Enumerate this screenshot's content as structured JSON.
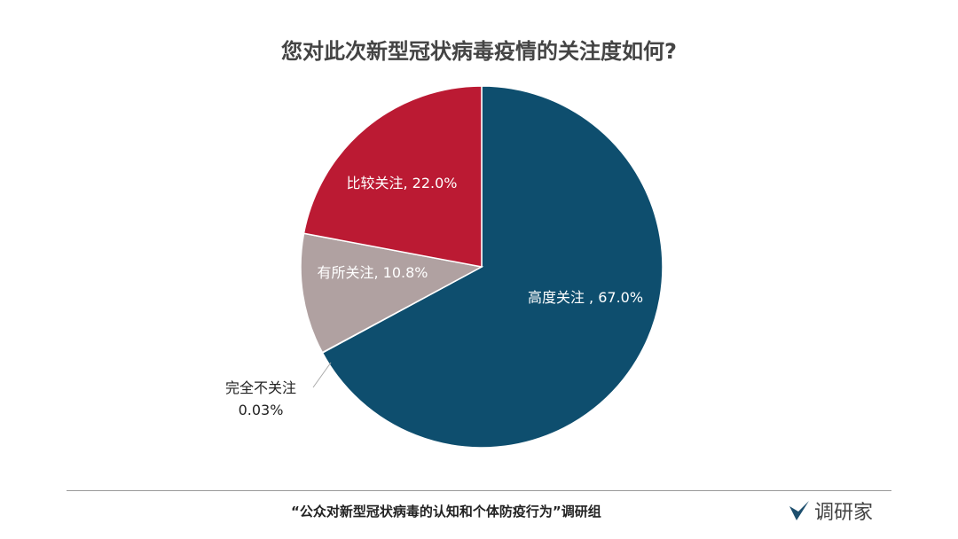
{
  "chart_data": {
    "type": "pie",
    "title": "您对此次新型冠状病毒疫情的关注度如何?",
    "slices": [
      {
        "label": "高度关注",
        "value": 67.0,
        "display": "高度关注 , 67.0%",
        "color": "#0e4e6e"
      },
      {
        "label": "完全不关注",
        "value": 0.03,
        "display": "0.03%",
        "color": "#7a8a96"
      },
      {
        "label": "有所关注",
        "value": 10.8,
        "display": "有所关注, 10.8%",
        "color": "#b0a1a1"
      },
      {
        "label": "比较关注",
        "value": 22.0,
        "display": "比较关注, 22.0%",
        "color": "#bb1a33"
      }
    ],
    "start": "top",
    "direction": "clockwise",
    "legend": "none"
  },
  "footer": {
    "source": "“公众对新型冠状病毒的认知和个体防疫行为”调研组"
  },
  "logo": {
    "text": "调研家"
  }
}
